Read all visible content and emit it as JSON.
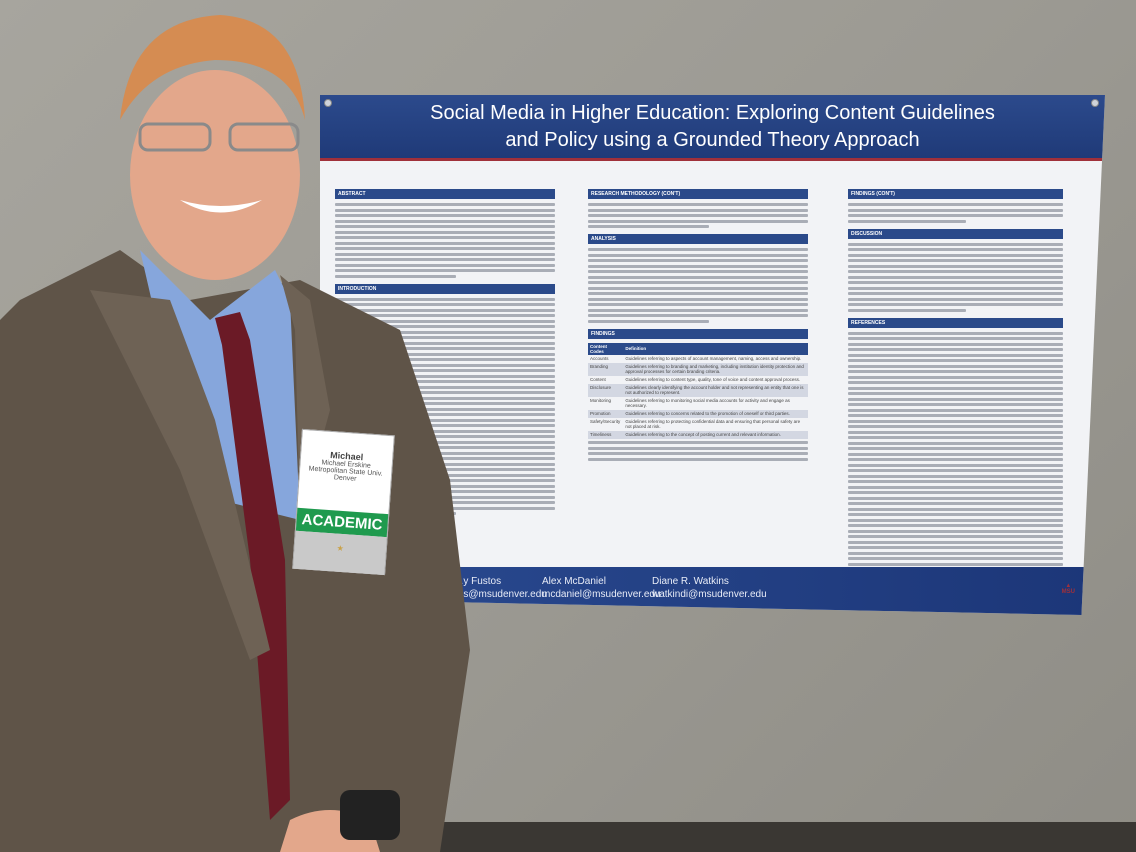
{
  "poster": {
    "title_line1": "Social Media in Higher Education: Exploring Content Guidelines",
    "title_line2": "and Policy using a Grounded Theory Approach",
    "col1_headings": [
      "ABSTRACT",
      "INTRODUCTION"
    ],
    "col2_headings": [
      "RESEARCH METHODOLOGY (CON'T)",
      "ANALYSIS",
      "FINDINGS"
    ],
    "col3_headings": [
      "FINDINGS (CON'T)",
      "DISCUSSION",
      "REFERENCES"
    ],
    "table": {
      "headers": [
        "Content Codes",
        "Definition"
      ],
      "rows": [
        [
          "Accounts",
          "Guidelines referring to aspects of account management, naming, access and ownership."
        ],
        [
          "Branding",
          "Guidelines referring to branding and marketing, including institution identity protection and approval processes for certain branding criteria."
        ],
        [
          "Content",
          "Guidelines referring to content type, quality, tone of voice and content approval process."
        ],
        [
          "Disclosure",
          "Guidelines clearly identifying the account holder and not representing an entity that one is not authorized to represent."
        ],
        [
          "Monitoring",
          "Guidelines referring to monitoring social media accounts for activity and engage as necessary."
        ],
        [
          "Promotion",
          "Guidelines referring to concerns related to the promotion of oneself or third parties."
        ],
        [
          "Safety/Security",
          "Guidelines referring to protecting confidential data and ensuring that personal safety are not placed at risk."
        ],
        [
          "Timeliness",
          "Guidelines referring to the concept of posting current and relevant information."
        ]
      ]
    },
    "authors": [
      {
        "name": "...y Fustos",
        "email": "...s@msudenver.edu"
      },
      {
        "name": "Alex McDaniel",
        "email": "mcdaniel@msudenver.edu"
      },
      {
        "name": "Diane R. Watkins",
        "email": "watkindi@msudenver.edu"
      }
    ],
    "logo_text": "METROPOLITAN STATE UNIVERSITY OF DENVER"
  },
  "badge": {
    "first_name": "Michael",
    "full_name": "Michael Erskine",
    "org": "Metropolitan State Univ. Denver",
    "category": "ACADEMIC"
  },
  "colors": {
    "poster_blue": "#2b4a8a",
    "suit": "#5f5448",
    "shirt": "#86a6dc",
    "tie": "#6b1a26",
    "badge_green": "#1f9a4e"
  }
}
